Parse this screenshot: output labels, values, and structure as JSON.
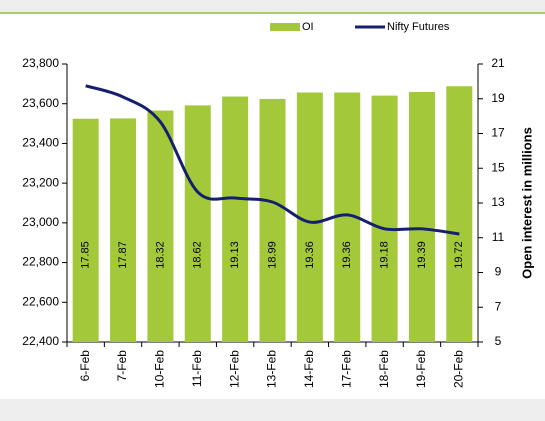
{
  "chart_data": {
    "type": "bar_line",
    "categories": [
      "6-Feb",
      "7-Feb",
      "10-Feb",
      "11-Feb",
      "12-Feb",
      "13-Feb",
      "14-Feb",
      "17-Feb",
      "18-Feb",
      "19-Feb",
      "20-Feb"
    ],
    "series": [
      {
        "name": "OI",
        "type": "bar",
        "axis": "y2",
        "color": "#a3c93a",
        "values": [
          17.85,
          17.87,
          18.32,
          18.62,
          19.13,
          18.99,
          19.36,
          19.36,
          19.18,
          19.39,
          19.72
        ]
      },
      {
        "name": "Nifty Futures",
        "type": "line",
        "color": "#14206e",
        "values": [
          23690,
          23634,
          23508,
          23155,
          23125,
          23105,
          23004,
          23040,
          22970,
          22970,
          22944
        ]
      }
    ],
    "ylim": [
      22400,
      23800
    ],
    "yticks": [
      {
        "value": 22400,
        "label": "22,400"
      },
      {
        "value": 22600,
        "label": "22,600"
      },
      {
        "value": 22800,
        "label": "22,800"
      },
      {
        "value": 23000,
        "label": "23,000"
      },
      {
        "value": 23200,
        "label": "23,200"
      },
      {
        "value": 23400,
        "label": "23,400"
      },
      {
        "value": 23600,
        "label": "23,600"
      },
      {
        "value": 23800,
        "label": "23,800"
      }
    ],
    "y2lim": [
      5,
      21
    ],
    "y2ticks": [
      5,
      7,
      9,
      11,
      13,
      15,
      17,
      19,
      21
    ],
    "y2label": "Open interest in millions",
    "legend": "top"
  }
}
